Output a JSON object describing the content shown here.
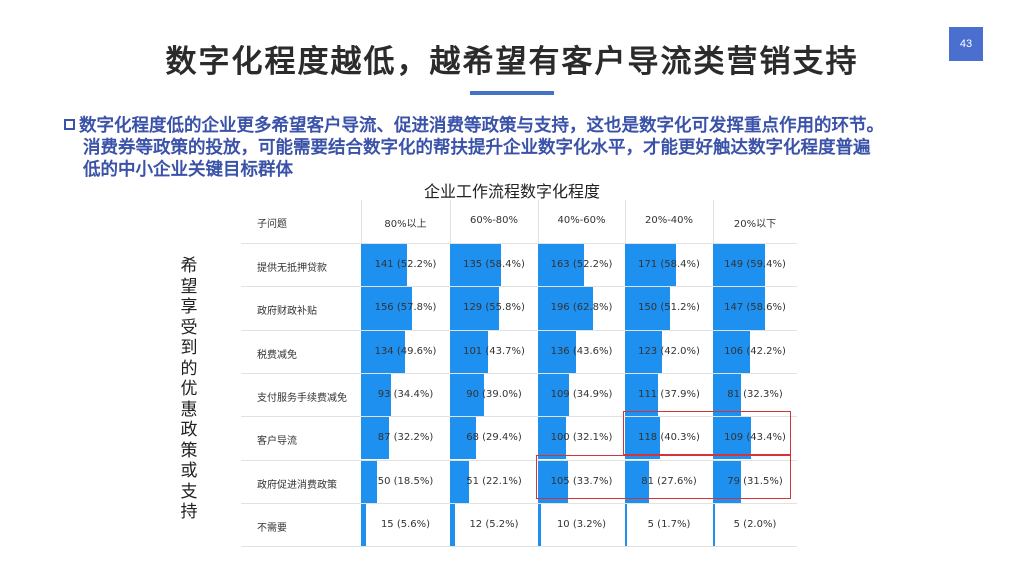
{
  "slide": {
    "title": "数字化程度越低，越希望有客户导流类营销支持",
    "page_number": "43"
  },
  "bullet": {
    "line1": "数字化程度低的企业更多希望客户导流、促进消费等政策与支持，这也是数字化可发挥重点作用的环节。",
    "line2": "消费券等政策的投放，可能需要结合数字化的帮扶提升企业数字化水平，才能更好触达数字化程度普遍",
    "line3": "低的中小企业关键目标群体"
  },
  "table": {
    "title": "企业工作流程数字化程度",
    "side_label": [
      "希",
      "望",
      "享",
      "受",
      "到",
      "的",
      "优",
      "惠",
      "政",
      "策",
      "或",
      "支",
      "持"
    ],
    "header": [
      "子问题",
      "80%以上",
      "60%-80%",
      "40%-60%",
      "20%-40%",
      "20%以下"
    ],
    "rows": [
      {
        "label": "提供无抵押贷款",
        "cells": [
          {
            "text": "141 (52.2%)",
            "pct": 52.2
          },
          {
            "text": "135 (58.4%)",
            "pct": 58.4
          },
          {
            "text": "163 (52.2%)",
            "pct": 52.2
          },
          {
            "text": "171 (58.4%)",
            "pct": 58.4
          },
          {
            "text": "149 (59.4%)",
            "pct": 59.4
          }
        ]
      },
      {
        "label": "政府财政补贴",
        "cells": [
          {
            "text": "156 (57.8%)",
            "pct": 57.8
          },
          {
            "text": "129 (55.8%)",
            "pct": 55.8
          },
          {
            "text": "196 (62.8%)",
            "pct": 62.8
          },
          {
            "text": "150 (51.2%)",
            "pct": 51.2
          },
          {
            "text": "147 (58.6%)",
            "pct": 58.6
          }
        ]
      },
      {
        "label": "税费减免",
        "cells": [
          {
            "text": "134 (49.6%)",
            "pct": 49.6
          },
          {
            "text": "101 (43.7%)",
            "pct": 43.7
          },
          {
            "text": "136 (43.6%)",
            "pct": 43.6
          },
          {
            "text": "123 (42.0%)",
            "pct": 42.0
          },
          {
            "text": "106 (42.2%)",
            "pct": 42.2
          }
        ]
      },
      {
        "label": "支付服务手续费减免",
        "cells": [
          {
            "text": "93 (34.4%)",
            "pct": 34.4
          },
          {
            "text": "90 (39.0%)",
            "pct": 39.0
          },
          {
            "text": "109 (34.9%)",
            "pct": 34.9
          },
          {
            "text": "111 (37.9%)",
            "pct": 37.9
          },
          {
            "text": "81 (32.3%)",
            "pct": 32.3
          }
        ]
      },
      {
        "label": "客户导流",
        "cells": [
          {
            "text": "87 (32.2%)",
            "pct": 32.2
          },
          {
            "text": "68 (29.4%)",
            "pct": 29.4
          },
          {
            "text": "100 (32.1%)",
            "pct": 32.1
          },
          {
            "text": "118 (40.3%)",
            "pct": 40.3
          },
          {
            "text": "109 (43.4%)",
            "pct": 43.4
          }
        ]
      },
      {
        "label": "政府促进消费政策",
        "cells": [
          {
            "text": "50 (18.5%)",
            "pct": 18.5
          },
          {
            "text": "51 (22.1%)",
            "pct": 22.1
          },
          {
            "text": "105 (33.7%)",
            "pct": 33.7
          },
          {
            "text": "81 (27.6%)",
            "pct": 27.6
          },
          {
            "text": "79 (31.5%)",
            "pct": 31.5
          }
        ]
      },
      {
        "label": "不需要",
        "cells": [
          {
            "text": "15 (5.6%)",
            "pct": 5.6
          },
          {
            "text": "12 (5.2%)",
            "pct": 5.2
          },
          {
            "text": "10 (3.2%)",
            "pct": 3.2
          },
          {
            "text": "5 (1.7%)",
            "pct": 1.7
          },
          {
            "text": "5 (2.0%)",
            "pct": 2.0
          }
        ]
      }
    ],
    "highlights": [
      {
        "row": 4,
        "col_start": 3,
        "col_end": 4
      },
      {
        "row": 5,
        "col_start": 2,
        "col_end": 4
      }
    ],
    "bar_color": "#1e90ef",
    "highlight_color": "#d2343a"
  }
}
